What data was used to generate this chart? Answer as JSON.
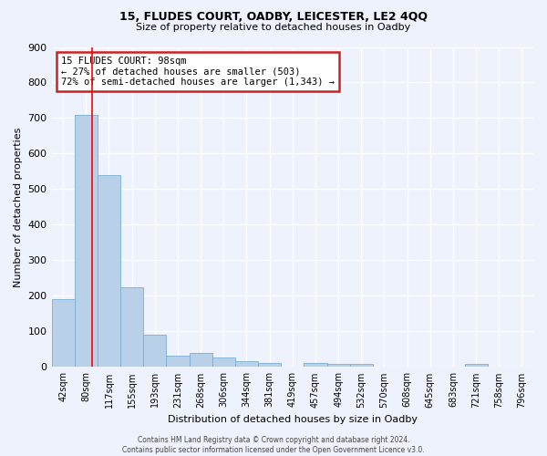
{
  "title1": "15, FLUDES COURT, OADBY, LEICESTER, LE2 4QQ",
  "title2": "Size of property relative to detached houses in Oadby",
  "xlabel": "Distribution of detached houses by size in Oadby",
  "ylabel": "Number of detached properties",
  "categories": [
    "42sqm",
    "80sqm",
    "117sqm",
    "155sqm",
    "193sqm",
    "231sqm",
    "268sqm",
    "306sqm",
    "344sqm",
    "381sqm",
    "419sqm",
    "457sqm",
    "494sqm",
    "532sqm",
    "570sqm",
    "608sqm",
    "645sqm",
    "683sqm",
    "721sqm",
    "758sqm",
    "796sqm"
  ],
  "values": [
    190,
    710,
    540,
    225,
    90,
    32,
    40,
    26,
    17,
    12,
    0,
    12,
    9,
    9,
    0,
    0,
    0,
    0,
    10,
    0,
    0
  ],
  "bar_color": "#b8d0e8",
  "bar_edge_color": "#7aaed4",
  "red_line_x": 1.27,
  "marker_label": "15 FLUDES COURT: 98sqm",
  "annotation_line1": "← 27% of detached houses are smaller (503)",
  "annotation_line2": "72% of semi-detached houses are larger (1,343) →",
  "box_color": "#cc2222",
  "ylim": [
    0,
    900
  ],
  "yticks": [
    0,
    100,
    200,
    300,
    400,
    500,
    600,
    700,
    800,
    900
  ],
  "footer1": "Contains HM Land Registry data © Crown copyright and database right 2024.",
  "footer2": "Contains public sector information licensed under the Open Government Licence v3.0.",
  "bg_color": "#edf2fc",
  "grid_color": "#ffffff"
}
